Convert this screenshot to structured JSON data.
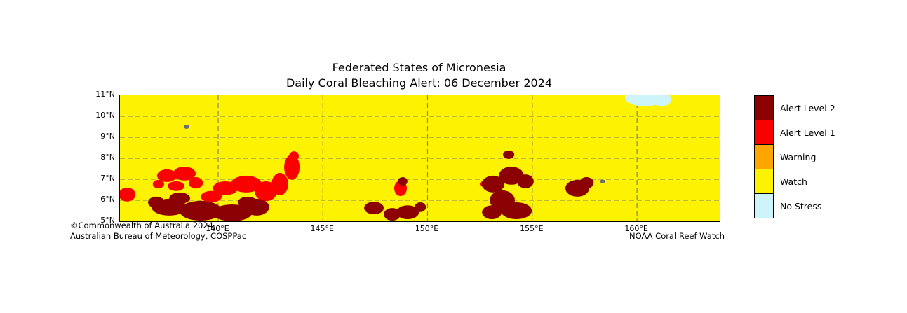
{
  "chart_data": {
    "type": "map",
    "title": "Federated States of Micronesia",
    "subtitle": "Daily Coral Bleaching Alert: 06 December 2024",
    "extent": {
      "lon_min": 135.31,
      "lon_max": 163.95,
      "lat_min": 5.0,
      "lat_max": 11.0
    },
    "grid": {
      "lons": [
        140,
        145,
        150,
        155,
        160
      ],
      "lats": [
        6,
        7,
        8,
        9,
        10
      ]
    },
    "axes": {
      "x_ticks": [
        {
          "label": "140°E",
          "lon": 140
        },
        {
          "label": "145°E",
          "lon": 145
        },
        {
          "label": "150°E",
          "lon": 150
        },
        {
          "label": "155°E",
          "lon": 155
        },
        {
          "label": "160°E",
          "lon": 160
        }
      ],
      "y_ticks": [
        {
          "label": "11°N",
          "lat": 11
        },
        {
          "label": "10°N",
          "lat": 10
        },
        {
          "label": "9°N",
          "lat": 9
        },
        {
          "label": "8°N",
          "lat": 8
        },
        {
          "label": "7°N",
          "lat": 7
        },
        {
          "label": "6°N",
          "lat": 6
        },
        {
          "label": "5°N",
          "lat": 5
        }
      ]
    },
    "colors": {
      "alert2": "#8b0000",
      "alert1": "#fa0000",
      "warning": "#ffa500",
      "watch": "#fdf200",
      "no_stress": "#cdf4fa",
      "land": "#6f6f6f"
    },
    "legend": [
      {
        "label": "Alert Level 2",
        "level": "alert2"
      },
      {
        "label": "Alert Level 1",
        "level": "alert1"
      },
      {
        "label": "Warning",
        "level": "warning"
      },
      {
        "label": "Watch",
        "level": "watch"
      },
      {
        "label": "No Stress",
        "level": "no_stress"
      }
    ],
    "shapes": [
      {
        "level": "alert1",
        "lon": 135.65,
        "lat": 6.27,
        "rlon": 0.4,
        "rlat": 0.33
      },
      {
        "level": "alert1",
        "lon": 137.55,
        "lat": 7.17,
        "rlon": 0.47,
        "rlat": 0.3
      },
      {
        "level": "alert1",
        "lon": 138.39,
        "lat": 7.27,
        "rlon": 0.54,
        "rlat": 0.33
      },
      {
        "level": "alert1",
        "lon": 138.93,
        "lat": 6.83,
        "rlon": 0.34,
        "rlat": 0.27
      },
      {
        "level": "alert1",
        "lon": 137.99,
        "lat": 6.67,
        "rlon": 0.4,
        "rlat": 0.23
      },
      {
        "level": "alert1",
        "lon": 137.15,
        "lat": 6.77,
        "rlon": 0.27,
        "rlat": 0.2
      },
      {
        "level": "alert1",
        "lon": 140.34,
        "lat": 6.57,
        "rlon": 0.6,
        "rlat": 0.33
      },
      {
        "level": "alert1",
        "lon": 141.34,
        "lat": 6.77,
        "rlon": 0.74,
        "rlat": 0.4
      },
      {
        "level": "alert1",
        "lon": 142.28,
        "lat": 6.43,
        "rlon": 0.54,
        "rlat": 0.47
      },
      {
        "level": "alert1",
        "lon": 142.95,
        "lat": 6.77,
        "rlon": 0.4,
        "rlat": 0.53
      },
      {
        "level": "alert1",
        "lon": 143.52,
        "lat": 7.57,
        "rlon": 0.37,
        "rlat": 0.6
      },
      {
        "level": "alert1",
        "lon": 143.62,
        "lat": 8.1,
        "rlon": 0.23,
        "rlat": 0.23
      },
      {
        "level": "alert1",
        "lon": 139.67,
        "lat": 6.17,
        "rlon": 0.5,
        "rlat": 0.27
      },
      {
        "level": "alert1",
        "lon": 148.71,
        "lat": 6.57,
        "rlon": 0.3,
        "rlat": 0.37
      },
      {
        "level": "alert1",
        "lon": 152.66,
        "lat": 6.77,
        "rlon": 0.17,
        "rlat": 0.13
      },
      {
        "level": "alert2",
        "lon": 137.66,
        "lat": 5.67,
        "rlon": 0.84,
        "rlat": 0.4
      },
      {
        "level": "alert2",
        "lon": 139.16,
        "lat": 5.5,
        "rlon": 1.01,
        "rlat": 0.47
      },
      {
        "level": "alert2",
        "lon": 140.67,
        "lat": 5.4,
        "rlon": 0.94,
        "rlat": 0.4
      },
      {
        "level": "alert2",
        "lon": 141.84,
        "lat": 5.67,
        "rlon": 0.6,
        "rlat": 0.4
      },
      {
        "level": "alert2",
        "lon": 138.16,
        "lat": 6.1,
        "rlon": 0.5,
        "rlat": 0.27
      },
      {
        "level": "alert2",
        "lon": 137.05,
        "lat": 5.9,
        "rlon": 0.4,
        "rlat": 0.27
      },
      {
        "level": "alert2",
        "lon": 141.41,
        "lat": 5.9,
        "rlon": 0.47,
        "rlat": 0.27
      },
      {
        "level": "alert2",
        "lon": 147.44,
        "lat": 5.63,
        "rlon": 0.47,
        "rlat": 0.3
      },
      {
        "level": "alert2",
        "lon": 148.31,
        "lat": 5.33,
        "rlon": 0.4,
        "rlat": 0.3
      },
      {
        "level": "alert2",
        "lon": 149.05,
        "lat": 5.43,
        "rlon": 0.54,
        "rlat": 0.33
      },
      {
        "level": "alert2",
        "lon": 149.65,
        "lat": 5.67,
        "rlon": 0.27,
        "rlat": 0.23
      },
      {
        "level": "alert2",
        "lon": 148.81,
        "lat": 6.9,
        "rlon": 0.23,
        "rlat": 0.2
      },
      {
        "level": "alert2",
        "lon": 153.13,
        "lat": 6.77,
        "rlon": 0.54,
        "rlat": 0.4
      },
      {
        "level": "alert2",
        "lon": 154.0,
        "lat": 7.17,
        "rlon": 0.6,
        "rlat": 0.43
      },
      {
        "level": "alert2",
        "lon": 154.67,
        "lat": 6.9,
        "rlon": 0.4,
        "rlat": 0.33
      },
      {
        "level": "alert2",
        "lon": 153.57,
        "lat": 6.0,
        "rlon": 0.6,
        "rlat": 0.47
      },
      {
        "level": "alert2",
        "lon": 154.24,
        "lat": 5.5,
        "rlon": 0.74,
        "rlat": 0.4
      },
      {
        "level": "alert2",
        "lon": 153.07,
        "lat": 5.43,
        "rlon": 0.47,
        "rlat": 0.33
      },
      {
        "level": "alert2",
        "lon": 153.87,
        "lat": 8.17,
        "rlon": 0.27,
        "rlat": 0.2
      },
      {
        "level": "alert2",
        "lon": 157.15,
        "lat": 6.57,
        "rlon": 0.57,
        "rlat": 0.4
      },
      {
        "level": "alert2",
        "lon": 157.59,
        "lat": 6.83,
        "rlon": 0.34,
        "rlat": 0.27
      },
      {
        "level": "land",
        "lon": 138.49,
        "lat": 9.5,
        "rlon": 0.13,
        "rlat": 0.1
      },
      {
        "level": "land",
        "lon": 158.36,
        "lat": 6.9,
        "rlon": 0.13,
        "rlat": 0.08
      },
      {
        "level": "no_stress",
        "lon": 160.37,
        "lat": 10.9,
        "rlon": 0.94,
        "rlat": 0.43
      },
      {
        "level": "no_stress",
        "lon": 161.17,
        "lat": 10.8,
        "rlon": 0.47,
        "rlat": 0.33
      }
    ]
  },
  "attribution": {
    "line1": "©Commonwealth of Australia 2024,",
    "line2": "Australian Bureau of Meteorology, COSPPac",
    "credit_right": "NOAA Coral Reef Watch"
  }
}
